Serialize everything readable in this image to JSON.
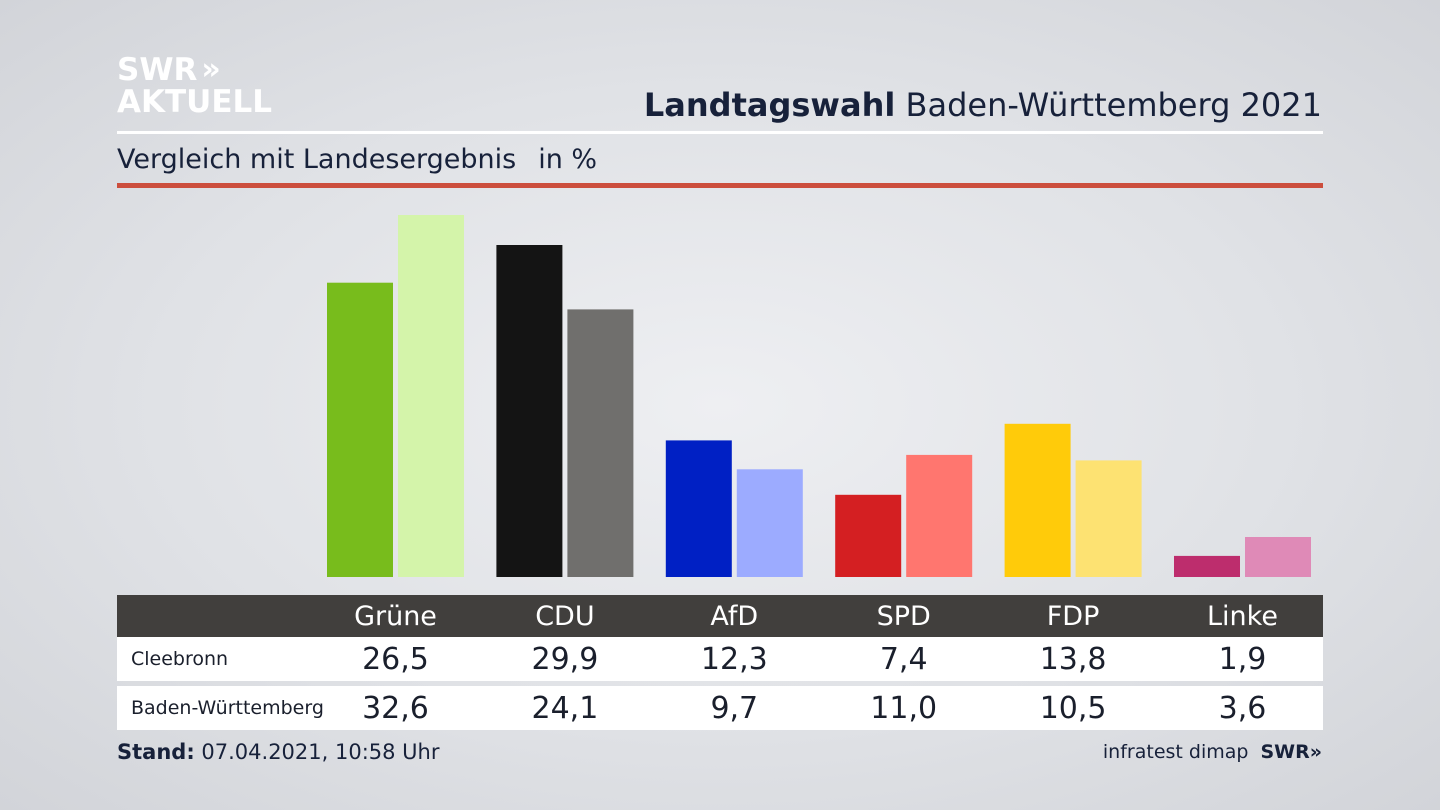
{
  "brand": {
    "line1": "SWR",
    "line2": "AKTUELL",
    "arrows": "»"
  },
  "header": {
    "title_bold": "Landtagswahl",
    "title_rest": " Baden-Württemberg 2021"
  },
  "subtitle": {
    "text": "Vergleich mit Landesergebnis",
    "unit": "in %"
  },
  "chart_data": {
    "type": "bar",
    "title": "Landtagswahl Baden-Württemberg 2021",
    "subtitle": "Vergleich mit Landesergebnis in %",
    "categories": [
      "Grüne",
      "CDU",
      "AfD",
      "SPD",
      "FDP",
      "Linke"
    ],
    "series": [
      {
        "name": "Cleebronn",
        "values": [
          26.5,
          29.9,
          12.3,
          7.4,
          13.8,
          1.9
        ],
        "colors": [
          "#78bc1c",
          "#141414",
          "#0020c4",
          "#d41f22",
          "#ffcb0a",
          "#bd2d6d"
        ]
      },
      {
        "name": "Baden-Württemberg",
        "values": [
          32.6,
          24.1,
          9.7,
          11.0,
          10.5,
          3.6
        ],
        "colors": [
          "#d4f4aa",
          "#706f6d",
          "#9cabff",
          "#ff766f",
          "#fde272",
          "#df8ab7"
        ]
      }
    ],
    "ylim": [
      0,
      32.6
    ],
    "xlabel": "",
    "ylabel": ""
  },
  "table": {
    "rows": [
      {
        "label": "Cleebronn",
        "values": [
          "26,5",
          "29,9",
          "12,3",
          "7,4",
          "13,8",
          "1,9"
        ]
      },
      {
        "label": "Baden-Württemberg",
        "values": [
          "32,6",
          "24,1",
          "9,7",
          "11,0",
          "10,5",
          "3,6"
        ]
      }
    ]
  },
  "footer": {
    "stand_label": "Stand:",
    "stand_value": " 07.04.2021, 10:58 Uhr",
    "source": "infratest dimap",
    "source_brand": "SWR»"
  }
}
